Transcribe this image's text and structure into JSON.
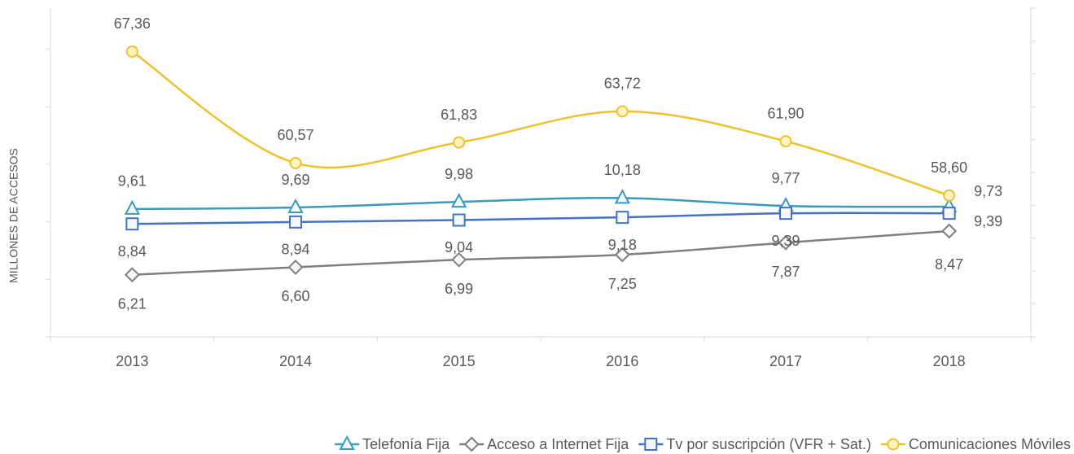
{
  "chart_data": {
    "type": "line",
    "y_label": "MILLONES DE ACCESOS",
    "categories": [
      "2013",
      "2014",
      "2015",
      "2016",
      "2017",
      "2018"
    ],
    "ylim": [
      3,
      20
    ],
    "yticks": [
      3,
      4.7,
      6.4,
      8.1,
      9.8,
      11.5,
      13.2,
      14.9,
      16.6,
      18.3,
      20
    ],
    "y2lim": [
      50,
      70
    ],
    "y2ticks": [
      50,
      53.5,
      57,
      60.5,
      64,
      67.5
    ],
    "series": [
      {
        "name": "Telefonía Fija",
        "color": "#3a9bbd",
        "marker": "triangle",
        "values": [
          9.61,
          9.69,
          9.98,
          10.18,
          9.77,
          9.73
        ],
        "value_labels": [
          "9,61",
          "9,69",
          "9,98",
          "10,18",
          "9,77",
          "9,73"
        ]
      },
      {
        "name": "Acceso a Internet Fija",
        "color": "#7f7f7f",
        "marker": "diamond",
        "values": [
          6.21,
          6.6,
          6.99,
          7.25,
          7.87,
          8.47
        ],
        "value_labels": [
          "6,21",
          "6,60",
          "6,99",
          "7,25",
          "7,87",
          "8,47"
        ]
      },
      {
        "name": "Tv por suscripción (VFR + Sat.)",
        "color": "#4472c4",
        "marker": "square",
        "values": [
          8.84,
          8.94,
          9.04,
          9.18,
          9.39,
          9.39
        ],
        "value_labels": [
          "8,84",
          "8,94",
          "9,04",
          "9,18",
          "9,39",
          "9,39"
        ]
      },
      {
        "name": "Comunicaciones Móviles",
        "color": "#eec22f",
        "marker": "circle",
        "axis": "y2",
        "values": [
          67.36,
          60.57,
          61.83,
          63.72,
          61.9,
          58.6
        ],
        "value_labels": [
          "67,36",
          "60,57",
          "61,83",
          "63,72",
          "61,90",
          "58,60"
        ]
      }
    ]
  }
}
